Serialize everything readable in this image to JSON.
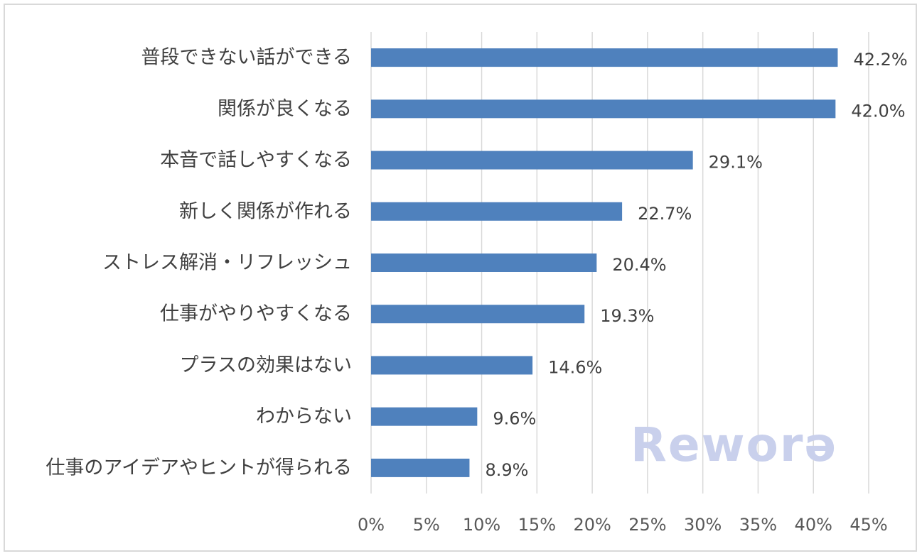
{
  "chart_data": {
    "type": "bar",
    "orientation": "horizontal",
    "categories": [
      "普段できない話ができる",
      "関係が良くなる",
      "本音で話しやすくなる",
      "新しく関係が作れる",
      "ストレス解消・リフレッシュ",
      "仕事がやりやすくなる",
      "プラスの効果はない",
      "わからない",
      "仕事のアイデアやヒントが得られる"
    ],
    "values": [
      42.2,
      42.0,
      29.1,
      22.7,
      20.4,
      19.3,
      14.6,
      9.6,
      8.9
    ],
    "value_labels": [
      "42.2%",
      "42.0%",
      "29.1%",
      "22.7%",
      "20.4%",
      "19.3%",
      "14.6%",
      "9.6%",
      "8.9%"
    ],
    "xlim": [
      0,
      45
    ],
    "x_ticks": [
      0,
      5,
      10,
      15,
      20,
      25,
      30,
      35,
      40,
      45
    ],
    "x_tick_labels": [
      "0%",
      "5%",
      "10%",
      "15%",
      "20%",
      "25%",
      "30%",
      "35%",
      "40%",
      "45%"
    ],
    "grid": "vertical",
    "bar_color": "#4f81bd",
    "gridline_color": "#d9d9d9"
  },
  "watermark": "Reworə"
}
